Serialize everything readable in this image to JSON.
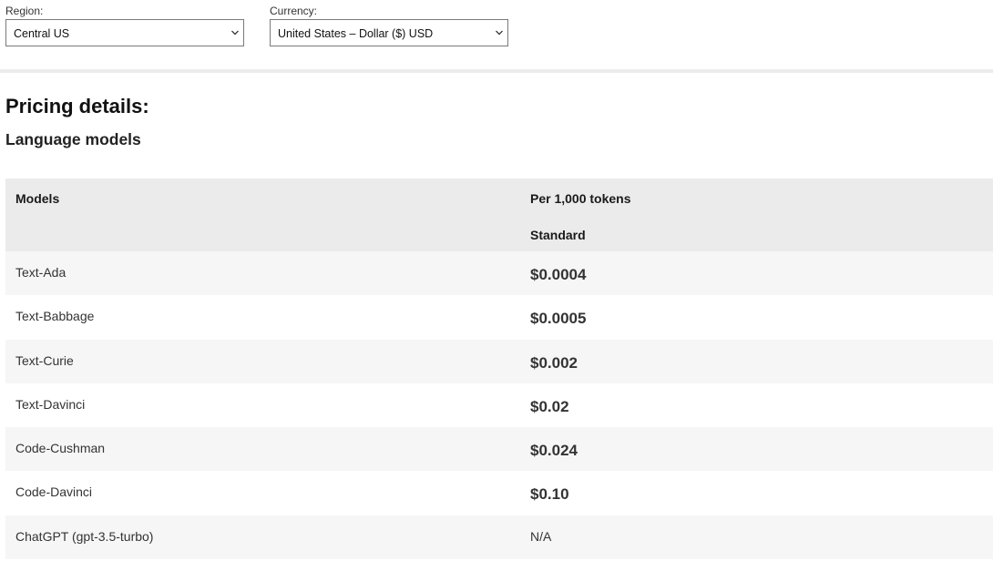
{
  "filters": {
    "region": {
      "label": "Region:",
      "value": "Central US"
    },
    "currency": {
      "label": "Currency:",
      "value": "United States – Dollar ($) USD"
    }
  },
  "pricing": {
    "title": "Pricing details:",
    "section": "Language models"
  },
  "table": {
    "header_models": "Models",
    "header_price": "Per 1,000 tokens",
    "header_tier": "Standard",
    "rows": [
      {
        "model": "Text-Ada",
        "price": "$0.0004"
      },
      {
        "model": "Text-Babbage",
        "price": "$0.0005"
      },
      {
        "model": "Text-Curie",
        "price": "$0.002"
      },
      {
        "model": "Text-Davinci",
        "price": "$0.02"
      },
      {
        "model": "Code-Cushman",
        "price": "$0.024"
      },
      {
        "model": "Code-Davinci",
        "price": "$0.10"
      },
      {
        "model": "ChatGPT (gpt-3.5-turbo)",
        "price": "N/A"
      }
    ]
  },
  "icons": {
    "dropdown": "chevron-down-icon"
  }
}
